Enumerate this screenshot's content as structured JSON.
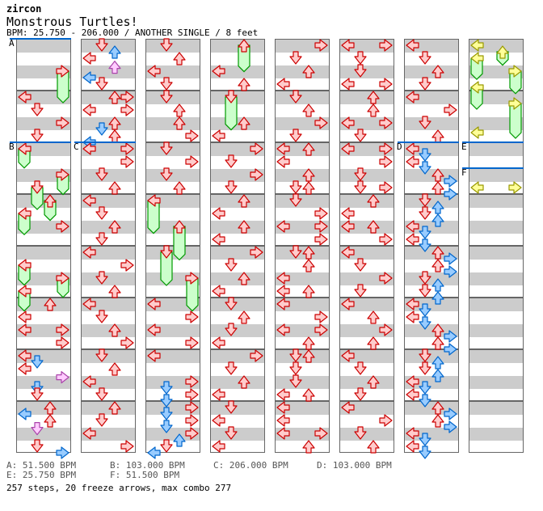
{
  "header": {
    "artist": "zircon",
    "title": "Monstrous Turtles!",
    "bpm_line": "BPM: 25.750 - 206.000 / ANOTHER SINGLE / 8 feet"
  },
  "colors": {
    "r": [
      "#ffcccc",
      "#cc0000"
    ],
    "b": [
      "#99ccff",
      "#0066cc"
    ],
    "p": [
      "#ffccff",
      "#aa44aa"
    ],
    "y": [
      "#ffff99",
      "#999900"
    ],
    "freeze": [
      "#ccffcc",
      "#009900"
    ],
    "bpm_line": "#0066cc"
  },
  "bpm_changes": [
    {
      "column": 0,
      "pos": 0,
      "label": "A"
    },
    {
      "column": 0,
      "pos": 16,
      "label": "B"
    },
    {
      "column": 1,
      "pos": 16,
      "label": "C"
    },
    {
      "column": 6,
      "pos": 16,
      "label": "D"
    },
    {
      "column": 7,
      "pos": 16,
      "label": "E"
    },
    {
      "column": 7,
      "pos": 20,
      "label": "F"
    }
  ],
  "columns": [
    {
      "notes": [
        [
          8,
          "L",
          "r"
        ],
        [
          10,
          "D",
          "r"
        ],
        [
          12,
          "R",
          "r"
        ],
        [
          14,
          "D",
          "r"
        ],
        [
          28,
          "R",
          "r"
        ],
        [
          40,
          "U",
          "r"
        ],
        [
          42,
          "L",
          "r"
        ],
        [
          44,
          "L",
          "r"
        ],
        [
          44,
          "R",
          "r"
        ],
        [
          46,
          "R",
          "r"
        ],
        [
          48,
          "L",
          "r"
        ],
        [
          49,
          "D",
          "b"
        ],
        [
          50,
          "L",
          "r"
        ],
        [
          51.33,
          "R",
          "p"
        ],
        [
          53,
          "D",
          "b"
        ],
        [
          54,
          "D",
          "r"
        ],
        [
          56,
          "U",
          "r"
        ],
        [
          57,
          "L",
          "b"
        ],
        [
          58,
          "U",
          "r"
        ],
        [
          59.33,
          "D",
          "p"
        ],
        [
          62,
          "D",
          "r"
        ],
        [
          63,
          "R",
          "b"
        ]
      ],
      "freezes": [
        [
          4,
          "R",
          "r",
          8.5
        ],
        [
          16,
          "L",
          "r",
          18.6
        ],
        [
          20,
          "R",
          "r",
          22.7
        ],
        [
          22,
          "D",
          "r",
          25
        ],
        [
          24,
          "U",
          "r",
          26.7
        ],
        [
          26,
          "L",
          "r",
          28.9
        ],
        [
          34,
          "L",
          "r",
          36.7
        ],
        [
          36,
          "R",
          "r",
          38.6
        ],
        [
          38,
          "L",
          "r",
          40.7
        ]
      ]
    },
    {
      "notes": [
        [
          0,
          "D",
          "r"
        ],
        [
          1,
          "U",
          "b"
        ],
        [
          2,
          "L",
          "r"
        ],
        [
          3.33,
          "U",
          "p"
        ],
        [
          5,
          "L",
          "b"
        ],
        [
          6,
          "D",
          "r"
        ],
        [
          8,
          "U",
          "r"
        ],
        [
          8,
          "R",
          "r"
        ],
        [
          10,
          "L",
          "r"
        ],
        [
          10,
          "R",
          "r"
        ],
        [
          12,
          "U",
          "r"
        ],
        [
          13,
          "D",
          "b"
        ],
        [
          14,
          "U",
          "r"
        ],
        [
          15,
          "L",
          "b"
        ],
        [
          16,
          "L",
          "r"
        ],
        [
          16,
          "R",
          "r"
        ],
        [
          18,
          "R",
          "r"
        ],
        [
          20,
          "D",
          "r"
        ],
        [
          22,
          "U",
          "r"
        ],
        [
          24,
          "L",
          "r"
        ],
        [
          26,
          "D",
          "r"
        ],
        [
          28,
          "U",
          "r"
        ],
        [
          30,
          "D",
          "r"
        ],
        [
          32,
          "L",
          "r"
        ],
        [
          34,
          "R",
          "r"
        ],
        [
          36,
          "D",
          "r"
        ],
        [
          38,
          "U",
          "r"
        ],
        [
          40,
          "L",
          "r"
        ],
        [
          42,
          "D",
          "r"
        ],
        [
          44,
          "U",
          "r"
        ],
        [
          46,
          "R",
          "r"
        ],
        [
          48,
          "D",
          "r"
        ],
        [
          50,
          "U",
          "r"
        ],
        [
          52,
          "L",
          "r"
        ],
        [
          54,
          "D",
          "r"
        ],
        [
          56,
          "U",
          "r"
        ],
        [
          58,
          "D",
          "r"
        ],
        [
          60,
          "L",
          "r"
        ],
        [
          62,
          "R",
          "r"
        ]
      ],
      "freezes": []
    },
    {
      "notes": [
        [
          0,
          "D",
          "r"
        ],
        [
          2,
          "U",
          "r"
        ],
        [
          4,
          "L",
          "r"
        ],
        [
          6,
          "D",
          "r"
        ],
        [
          8,
          "D",
          "r"
        ],
        [
          10,
          "U",
          "r"
        ],
        [
          12,
          "U",
          "r"
        ],
        [
          14,
          "R",
          "r"
        ],
        [
          16,
          "D",
          "r"
        ],
        [
          18,
          "R",
          "r"
        ],
        [
          20,
          "D",
          "r"
        ],
        [
          22,
          "U",
          "r"
        ],
        [
          40,
          "L",
          "r"
        ],
        [
          42,
          "R",
          "r"
        ],
        [
          44,
          "L",
          "r"
        ],
        [
          46,
          "R",
          "r"
        ],
        [
          48,
          "L",
          "r"
        ],
        [
          52,
          "R",
          "r"
        ],
        [
          53,
          "D",
          "b"
        ],
        [
          54,
          "R",
          "r"
        ],
        [
          55,
          "D",
          "b"
        ],
        [
          56,
          "R",
          "r"
        ],
        [
          57,
          "D",
          "b"
        ],
        [
          58,
          "R",
          "r"
        ],
        [
          59,
          "D",
          "b"
        ],
        [
          60,
          "R",
          "r"
        ],
        [
          61,
          "U",
          "b"
        ],
        [
          62,
          "D",
          "r"
        ],
        [
          63,
          "L",
          "b"
        ]
      ],
      "freezes": [
        [
          24,
          "L",
          "r",
          28.7
        ],
        [
          28,
          "U",
          "r",
          32.8
        ],
        [
          32,
          "D",
          "r",
          36.75
        ],
        [
          36,
          "R",
          "r",
          40.7
        ]
      ]
    },
    {
      "notes": [
        [
          4,
          "L",
          "r"
        ],
        [
          6,
          "U",
          "r"
        ],
        [
          12,
          "U",
          "r"
        ],
        [
          14,
          "L",
          "r"
        ],
        [
          16,
          "R",
          "r"
        ],
        [
          18,
          "D",
          "r"
        ],
        [
          20,
          "R",
          "r"
        ],
        [
          22,
          "D",
          "r"
        ],
        [
          24,
          "U",
          "r"
        ],
        [
          26,
          "L",
          "r"
        ],
        [
          28,
          "U",
          "r"
        ],
        [
          30,
          "L",
          "r"
        ],
        [
          32,
          "R",
          "r"
        ],
        [
          34,
          "D",
          "r"
        ],
        [
          36,
          "U",
          "r"
        ],
        [
          38,
          "L",
          "r"
        ],
        [
          40,
          "D",
          "r"
        ],
        [
          42,
          "U",
          "r"
        ],
        [
          44,
          "D",
          "r"
        ],
        [
          46,
          "L",
          "r"
        ],
        [
          48,
          "R",
          "r"
        ],
        [
          50,
          "D",
          "r"
        ],
        [
          52,
          "U",
          "r"
        ],
        [
          54,
          "L",
          "r"
        ],
        [
          56,
          "D",
          "r"
        ],
        [
          58,
          "L",
          "r"
        ],
        [
          60,
          "D",
          "r"
        ],
        [
          62,
          "L",
          "r"
        ]
      ],
      "freezes": [
        [
          0,
          "U",
          "r",
          3.7
        ],
        [
          8,
          "D",
          "r",
          12.7
        ]
      ]
    },
    {
      "notes": [
        [
          0,
          "R",
          "r"
        ],
        [
          2,
          "D",
          "r"
        ],
        [
          4,
          "U",
          "r"
        ],
        [
          6,
          "L",
          "r"
        ],
        [
          8,
          "D",
          "r"
        ],
        [
          10,
          "U",
          "r"
        ],
        [
          12,
          "R",
          "r"
        ],
        [
          14,
          "D",
          "r"
        ],
        [
          16,
          "L",
          "r"
        ],
        [
          16,
          "U",
          "r"
        ],
        [
          18,
          "L",
          "r"
        ],
        [
          20,
          "U",
          "r"
        ],
        [
          22,
          "D",
          "r"
        ],
        [
          22,
          "U",
          "r"
        ],
        [
          24,
          "D",
          "r"
        ],
        [
          26,
          "R",
          "r"
        ],
        [
          28,
          "L",
          "r"
        ],
        [
          28,
          "R",
          "r"
        ],
        [
          30,
          "R",
          "r"
        ],
        [
          32,
          "D",
          "r"
        ],
        [
          32,
          "U",
          "r"
        ],
        [
          34,
          "U",
          "r"
        ],
        [
          36,
          "L",
          "r"
        ],
        [
          38,
          "L",
          "r"
        ],
        [
          38,
          "U",
          "r"
        ],
        [
          40,
          "L",
          "r"
        ],
        [
          42,
          "R",
          "r"
        ],
        [
          44,
          "L",
          "r"
        ],
        [
          44,
          "R",
          "r"
        ],
        [
          46,
          "U",
          "r"
        ],
        [
          48,
          "D",
          "r"
        ],
        [
          48,
          "U",
          "r"
        ],
        [
          50,
          "D",
          "r"
        ],
        [
          52,
          "D",
          "r"
        ],
        [
          54,
          "L",
          "r"
        ],
        [
          54,
          "U",
          "r"
        ],
        [
          56,
          "L",
          "r"
        ],
        [
          58,
          "L",
          "r"
        ],
        [
          60,
          "L",
          "r"
        ],
        [
          60,
          "R",
          "r"
        ],
        [
          62,
          "U",
          "r"
        ]
      ],
      "freezes": []
    },
    {
      "notes": [
        [
          0,
          "L",
          "r"
        ],
        [
          0,
          "R",
          "r"
        ],
        [
          2,
          "D",
          "r"
        ],
        [
          4,
          "D",
          "r"
        ],
        [
          6,
          "L",
          "r"
        ],
        [
          6,
          "R",
          "r"
        ],
        [
          8,
          "U",
          "r"
        ],
        [
          10,
          "U",
          "r"
        ],
        [
          12,
          "L",
          "r"
        ],
        [
          12,
          "R",
          "r"
        ],
        [
          14,
          "D",
          "r"
        ],
        [
          16,
          "L",
          "r"
        ],
        [
          16,
          "R",
          "r"
        ],
        [
          18,
          "R",
          "r"
        ],
        [
          20,
          "D",
          "r"
        ],
        [
          22,
          "D",
          "r"
        ],
        [
          22,
          "R",
          "r"
        ],
        [
          24,
          "U",
          "r"
        ],
        [
          26,
          "L",
          "r"
        ],
        [
          28,
          "L",
          "r"
        ],
        [
          28,
          "U",
          "r"
        ],
        [
          30,
          "R",
          "r"
        ],
        [
          32,
          "L",
          "r"
        ],
        [
          34,
          "D",
          "r"
        ],
        [
          36,
          "R",
          "r"
        ],
        [
          38,
          "D",
          "r"
        ],
        [
          40,
          "L",
          "r"
        ],
        [
          42,
          "U",
          "r"
        ],
        [
          44,
          "R",
          "r"
        ],
        [
          46,
          "U",
          "r"
        ],
        [
          48,
          "L",
          "r"
        ],
        [
          50,
          "D",
          "r"
        ],
        [
          52,
          "U",
          "r"
        ],
        [
          54,
          "D",
          "r"
        ],
        [
          56,
          "L",
          "r"
        ],
        [
          58,
          "R",
          "r"
        ],
        [
          60,
          "D",
          "r"
        ],
        [
          62,
          "U",
          "r"
        ]
      ],
      "freezes": []
    },
    {
      "notes": [
        [
          0,
          "L",
          "r"
        ],
        [
          2,
          "D",
          "r"
        ],
        [
          4,
          "U",
          "r"
        ],
        [
          6,
          "D",
          "r"
        ],
        [
          8,
          "L",
          "r"
        ],
        [
          10,
          "R",
          "r"
        ],
        [
          12,
          "D",
          "r"
        ],
        [
          14,
          "U",
          "r"
        ],
        [
          16,
          "L",
          "r"
        ],
        [
          17,
          "D",
          "b"
        ],
        [
          18,
          "L",
          "r"
        ],
        [
          19,
          "D",
          "b"
        ],
        [
          20,
          "U",
          "r"
        ],
        [
          21,
          "R",
          "b"
        ],
        [
          22,
          "U",
          "r"
        ],
        [
          23,
          "R",
          "b"
        ],
        [
          24,
          "D",
          "r"
        ],
        [
          25,
          "U",
          "b"
        ],
        [
          26,
          "D",
          "r"
        ],
        [
          27,
          "U",
          "b"
        ],
        [
          28,
          "L",
          "r"
        ],
        [
          29,
          "D",
          "b"
        ],
        [
          30,
          "L",
          "r"
        ],
        [
          31,
          "D",
          "b"
        ],
        [
          32,
          "U",
          "r"
        ],
        [
          33,
          "R",
          "b"
        ],
        [
          34,
          "U",
          "r"
        ],
        [
          35,
          "R",
          "b"
        ],
        [
          36,
          "D",
          "r"
        ],
        [
          37,
          "U",
          "b"
        ],
        [
          38,
          "D",
          "r"
        ],
        [
          39,
          "U",
          "b"
        ],
        [
          40,
          "L",
          "r"
        ],
        [
          41,
          "D",
          "b"
        ],
        [
          42,
          "L",
          "r"
        ],
        [
          43,
          "D",
          "b"
        ],
        [
          44,
          "U",
          "r"
        ],
        [
          45,
          "R",
          "b"
        ],
        [
          46,
          "U",
          "r"
        ],
        [
          47,
          "R",
          "b"
        ],
        [
          48,
          "D",
          "r"
        ],
        [
          49,
          "U",
          "b"
        ],
        [
          50,
          "D",
          "r"
        ],
        [
          51,
          "U",
          "b"
        ],
        [
          52,
          "L",
          "r"
        ],
        [
          53,
          "D",
          "b"
        ],
        [
          54,
          "L",
          "r"
        ],
        [
          55,
          "D",
          "b"
        ],
        [
          56,
          "U",
          "r"
        ],
        [
          57,
          "R",
          "b"
        ],
        [
          58,
          "U",
          "r"
        ],
        [
          59,
          "R",
          "b"
        ],
        [
          60,
          "L",
          "r"
        ],
        [
          61,
          "D",
          "b"
        ],
        [
          62,
          "L",
          "r"
        ],
        [
          63,
          "D",
          "b"
        ]
      ],
      "freezes": []
    },
    {
      "notes": [
        [
          0,
          "L",
          "y"
        ],
        [
          13.5,
          "L",
          "y"
        ],
        [
          22,
          "L",
          "y"
        ],
        [
          22,
          "R",
          "y"
        ]
      ],
      "freezes": [
        [
          1,
          "U",
          "y",
          2.7
        ],
        [
          2,
          "L",
          "y",
          4.9
        ],
        [
          4,
          "R",
          "y",
          7.1
        ],
        [
          6.5,
          "L",
          "y",
          9.5
        ],
        [
          9,
          "R",
          "y",
          14
        ]
      ]
    }
  ],
  "legend": [
    "A: 51.500 BPM",
    "B: 103.000 BPM",
    "C: 206.000 BPM",
    "D: 103.000 BPM",
    "E: 25.750 BPM",
    "F: 51.500 BPM"
  ],
  "summary": "257 steps, 20 freeze arrows, max combo 277"
}
